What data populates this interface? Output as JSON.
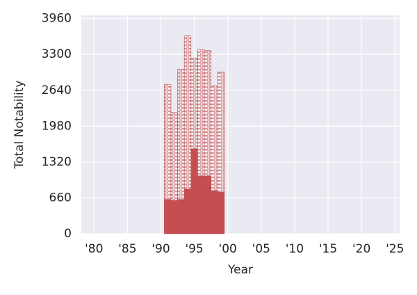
{
  "chart_data": {
    "type": "stacked_bar",
    "x_label": "Year",
    "y_label": "Total Notability",
    "x": [
      1991,
      1992,
      1993,
      1994,
      1995,
      1996,
      1997,
      1998,
      1999
    ],
    "series": [
      {
        "color": "#c44e52",
        "values": [
          630,
          615,
          630,
          820,
          1565,
          1065,
          1065,
          795,
          770
        ]
      },
      {
        "color": "#b5454b",
        "values": [
          2120,
          1615,
          2395,
          2820,
          1665,
          2320,
          2305,
          1925,
          2205
        ]
      }
    ],
    "xlim": [
      1978.1,
      2025.7
    ],
    "xticks": [
      {
        "value": 1980,
        "label": "'80"
      },
      {
        "value": 1985,
        "label": "'85"
      },
      {
        "value": 1990,
        "label": "'90"
      },
      {
        "value": 1995,
        "label": "'95"
      },
      {
        "value": 2000,
        "label": "'00"
      },
      {
        "value": 2005,
        "label": "'05"
      },
      {
        "value": 2010,
        "label": "'10"
      },
      {
        "value": 2015,
        "label": "'15"
      },
      {
        "value": 2020,
        "label": "'20"
      },
      {
        "value": 2025,
        "label": "'25"
      }
    ],
    "ylim": [
      0,
      4020
    ],
    "yticks": [
      0,
      660,
      1320,
      1980,
      2640,
      3300,
      3960
    ],
    "grid": true
  }
}
